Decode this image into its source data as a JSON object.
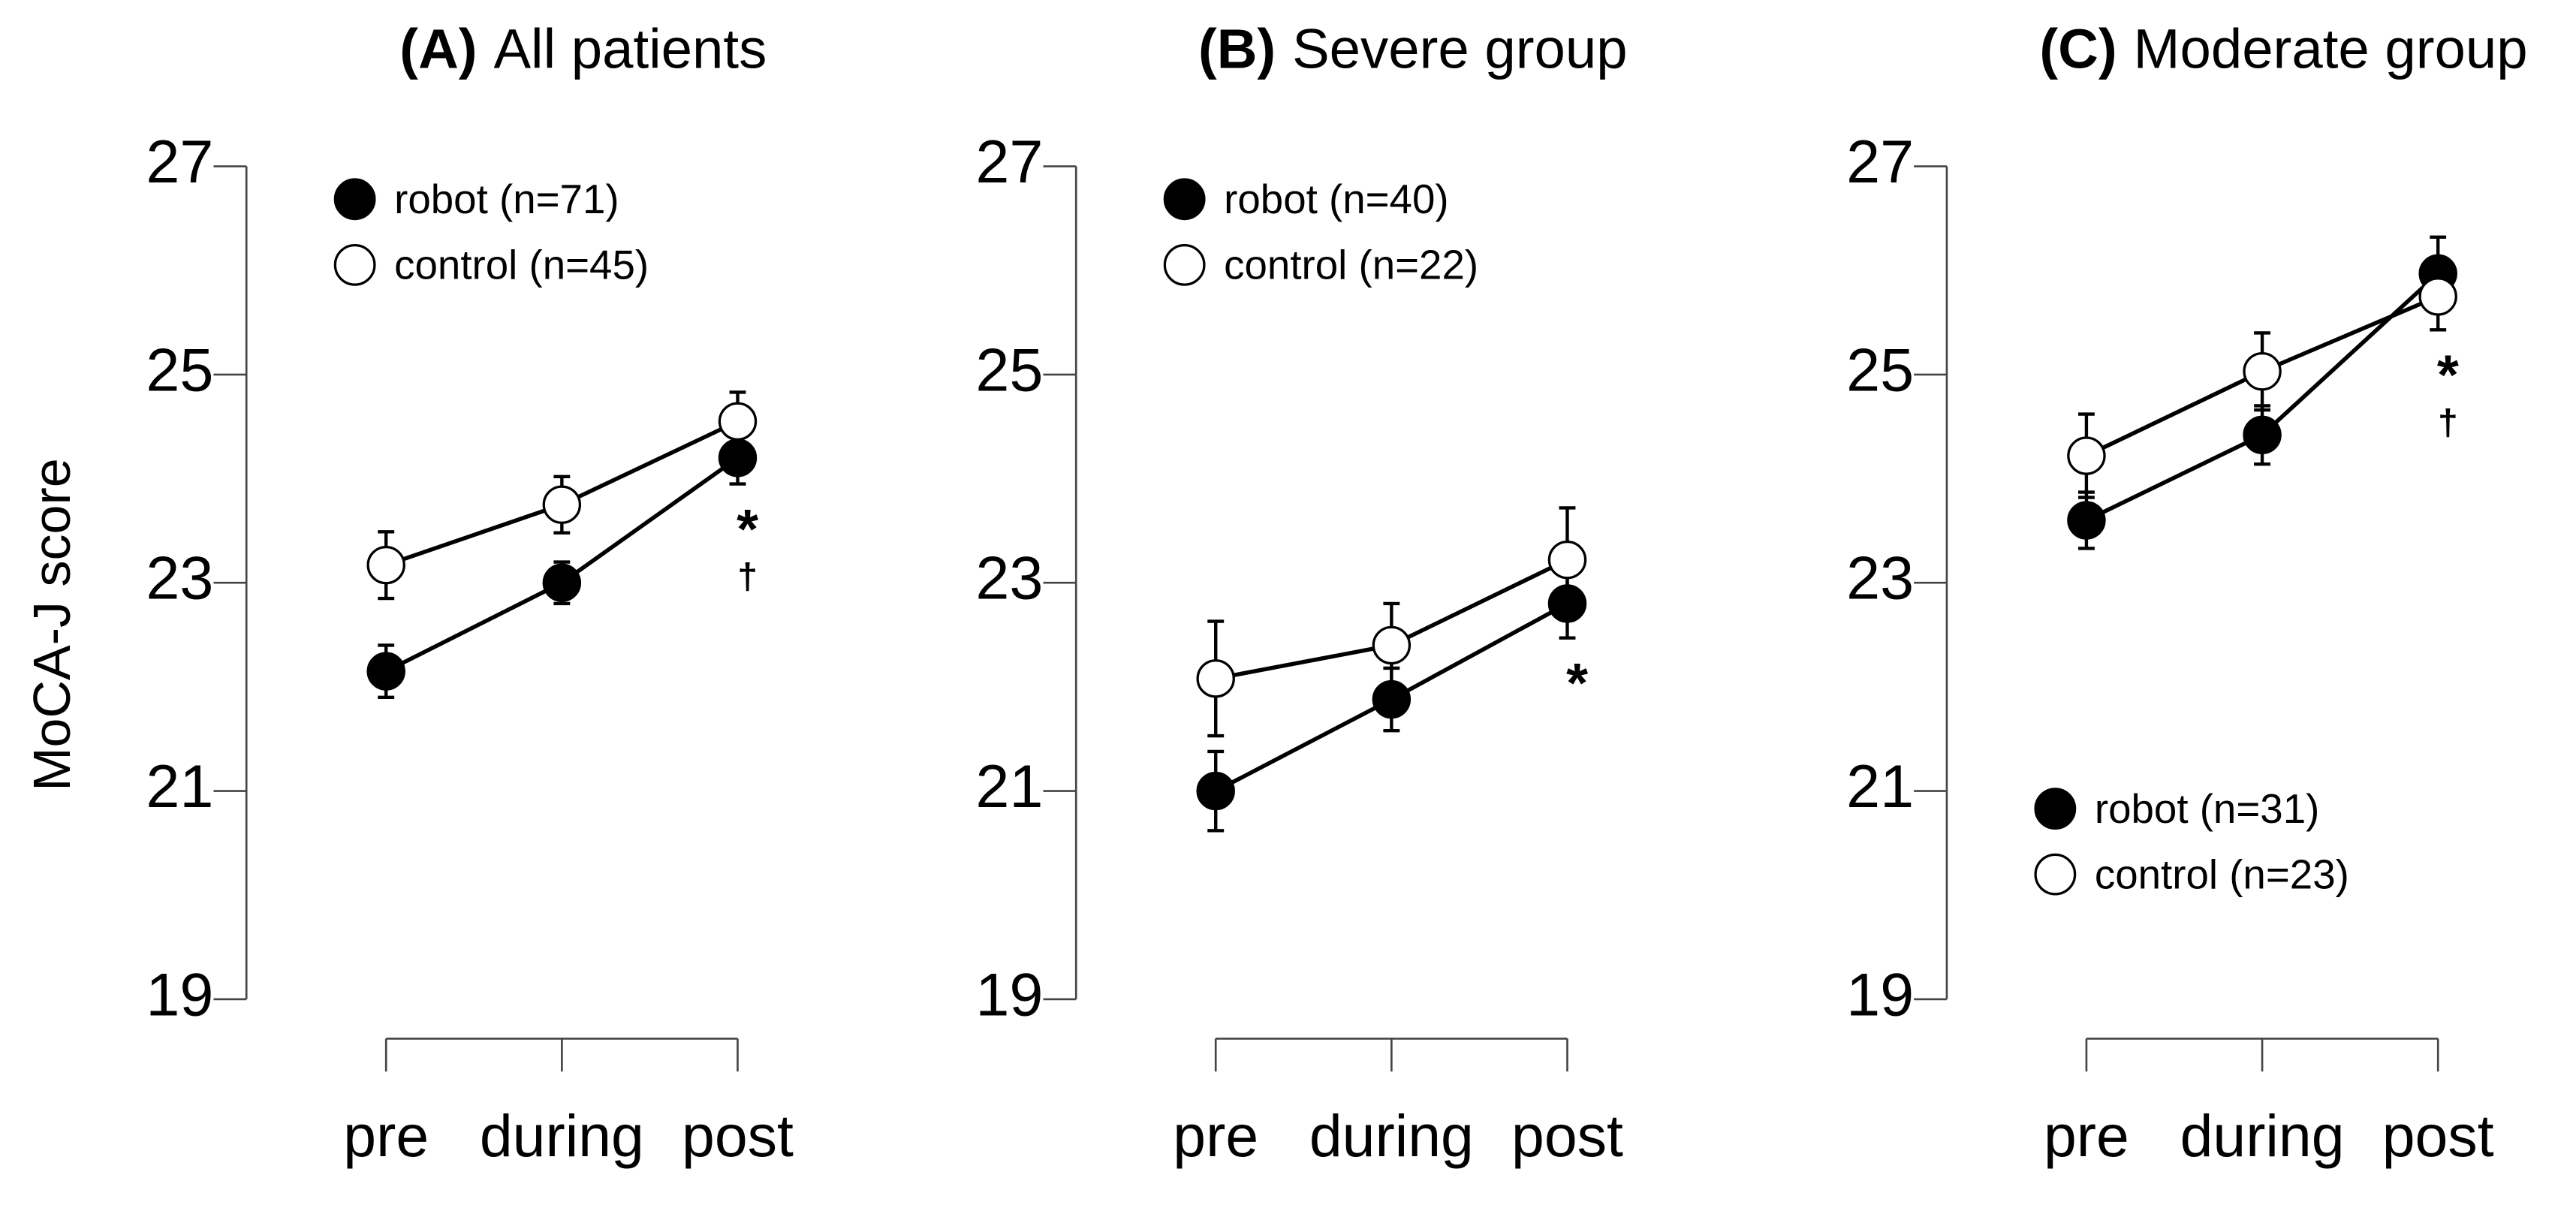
{
  "chart_data": [
    {
      "type": "line",
      "title_label": "(A)",
      "title": "All patients",
      "y_label": "MoCA-J score",
      "categories": [
        "pre",
        "during",
        "post"
      ],
      "ylim": [
        19,
        27
      ],
      "yticks": [
        19,
        21,
        23,
        25,
        27
      ],
      "legend": "upper left",
      "annotations": [
        "*",
        "†"
      ],
      "series": [
        {
          "name": "robot (n=71)",
          "color": "#000000",
          "values": [
            22.15,
            23.0,
            24.2
          ],
          "errors": [
            0.25,
            0.2,
            0.25
          ]
        },
        {
          "name": "control (n=45)",
          "color": "#ffffff",
          "values": [
            23.17,
            23.75,
            24.55
          ],
          "errors": [
            0.32,
            0.27,
            0.28
          ]
        }
      ]
    },
    {
      "type": "line",
      "title_label": "(B)",
      "title": "Severe group",
      "categories": [
        "pre",
        "during",
        "post"
      ],
      "ylim": [
        19,
        27
      ],
      "yticks": [
        19,
        21,
        23,
        25,
        27
      ],
      "legend": "upper left",
      "annotations": [
        "*"
      ],
      "series": [
        {
          "name": "robot (n=40)",
          "color": "#000000",
          "values": [
            21.0,
            21.88,
            22.8
          ],
          "errors": [
            0.38,
            0.3,
            0.33
          ]
        },
        {
          "name": "control (n=22)",
          "color": "#ffffff",
          "values": [
            22.08,
            22.4,
            23.22
          ],
          "errors": [
            0.55,
            0.4,
            0.5
          ]
        }
      ]
    },
    {
      "type": "line",
      "title_label": "(C)",
      "title": "Moderate group",
      "categories": [
        "pre",
        "during",
        "post"
      ],
      "ylim": [
        19,
        27
      ],
      "yticks": [
        19,
        21,
        23,
        25,
        27
      ],
      "legend": "lower left",
      "annotations": [
        "*",
        "†"
      ],
      "series": [
        {
          "name": "robot (n=31)",
          "color": "#000000",
          "values": [
            23.6,
            24.42,
            25.97
          ],
          "errors": [
            0.27,
            0.28,
            0.35
          ]
        },
        {
          "name": "control (n=23)",
          "color": "#ffffff",
          "values": [
            24.22,
            25.03,
            25.75
          ],
          "errors": [
            0.4,
            0.37,
            0.32
          ]
        }
      ]
    }
  ]
}
